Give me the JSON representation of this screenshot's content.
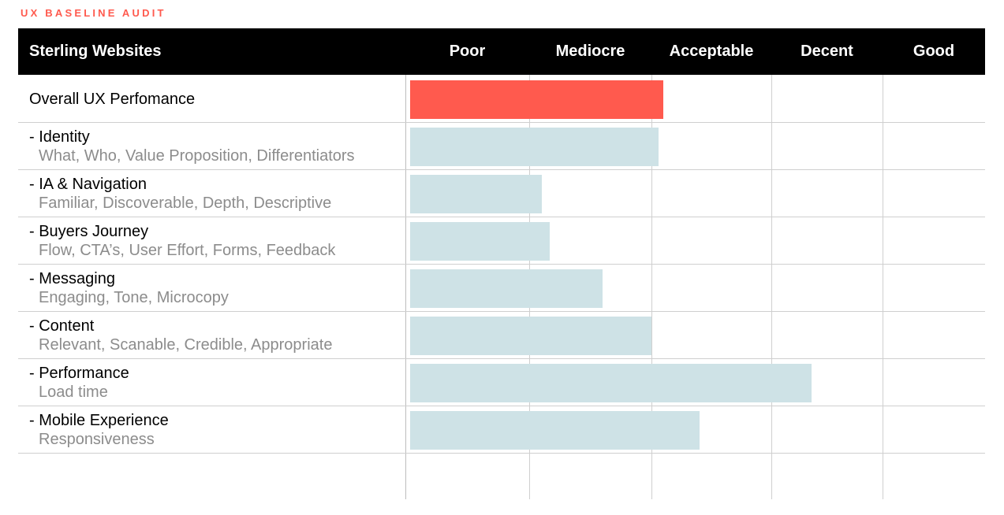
{
  "page": {
    "top_label": "UX BASELINE AUDIT"
  },
  "colors": {
    "accent": "#ff5a4e",
    "overall_bar": "#ff5a4e",
    "sub_bar": "#cee2e6",
    "header_bg": "#000000",
    "header_text": "#ffffff",
    "sub_text": "#8c8c8c",
    "grid": "#cfcfcf"
  },
  "chart_data": {
    "type": "bar",
    "orientation": "horizontal",
    "title": "Sterling Websites",
    "scale_categories": [
      "Poor",
      "Mediocre",
      "Acceptable",
      "Decent",
      "Good"
    ],
    "xlim": [
      0,
      5
    ],
    "grid": true,
    "rows": [
      {
        "label": "Overall UX Perfomance",
        "sub": "",
        "value": 2.1,
        "highlight": true
      },
      {
        "label": "- Identity",
        "sub": "What, Who, Value Proposition, Differentiators",
        "value": 2.06,
        "highlight": false
      },
      {
        "label": "- IA & Navigation",
        "sub": "Familiar, Discoverable, Depth, Descriptive",
        "value": 1.1,
        "highlight": false
      },
      {
        "label": "- Buyers Journey",
        "sub": "Flow, CTA’s, User Effort, Forms, Feedback",
        "value": 1.17,
        "highlight": false
      },
      {
        "label": "- Messaging",
        "sub": "Engaging, Tone, Microcopy",
        "value": 1.6,
        "highlight": false
      },
      {
        "label": "- Content",
        "sub": "Relevant, Scanable, Credible, Appropriate",
        "value": 2.0,
        "highlight": false
      },
      {
        "label": "- Performance",
        "sub": "Load time",
        "value": 3.36,
        "highlight": false
      },
      {
        "label": "- Mobile Experience",
        "sub": "Responsiveness",
        "value": 2.4,
        "highlight": false
      }
    ]
  }
}
